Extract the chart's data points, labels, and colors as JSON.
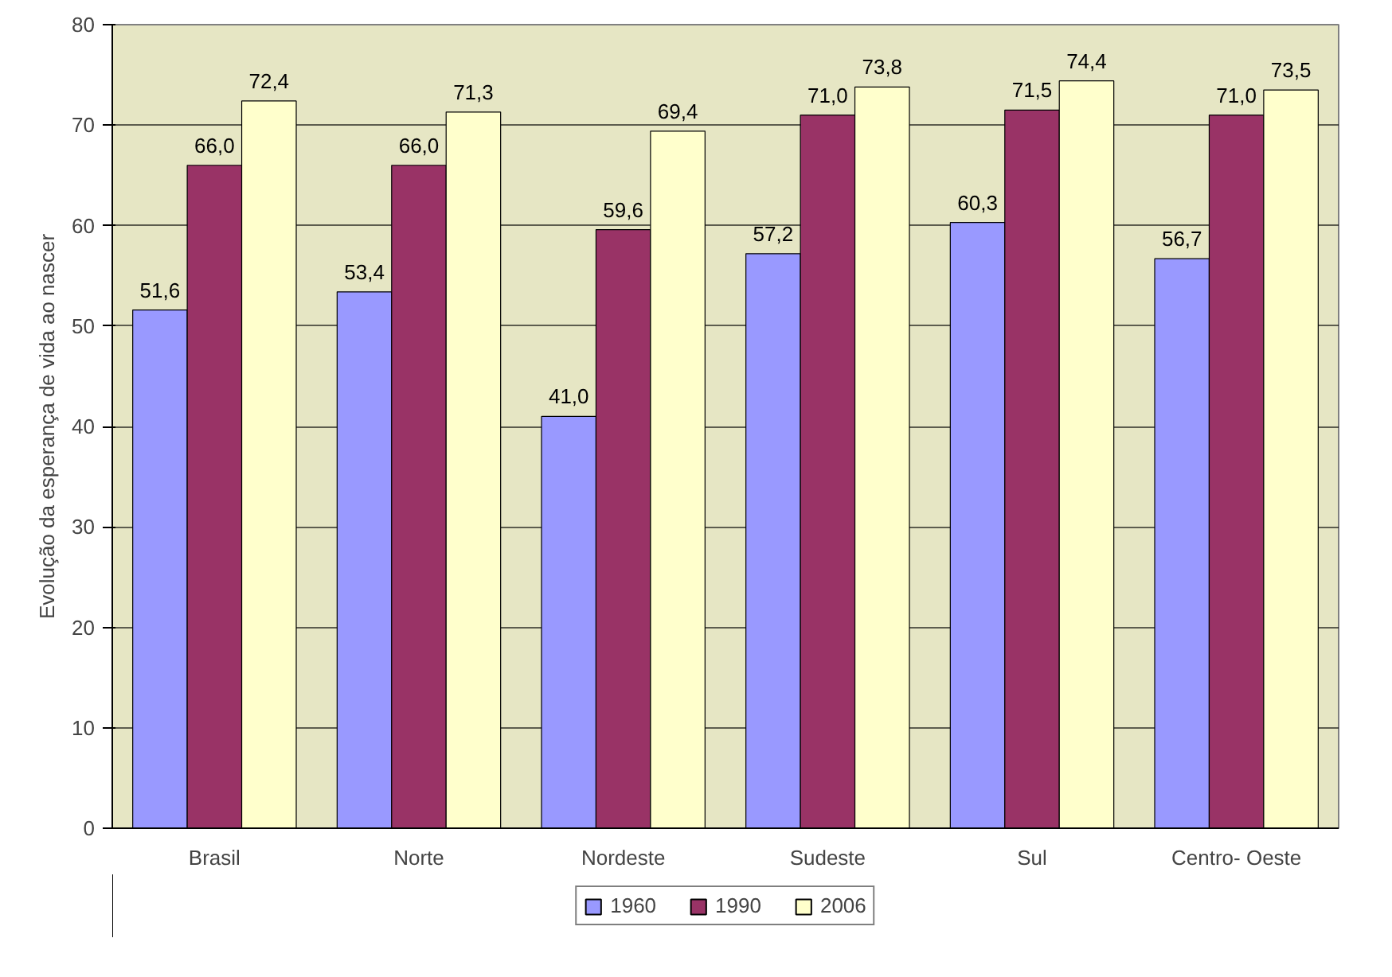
{
  "chart_data": {
    "type": "bar",
    "ylabel": "Evolução da esperança de vida ao nascer",
    "categories": [
      "Brasil",
      "Norte",
      "Nordeste",
      "Sudeste",
      "Sul",
      "Centro- Oeste"
    ],
    "series": [
      {
        "name": "1960",
        "color": "#9999ff",
        "values": [
          51.6,
          53.4,
          41.0,
          57.2,
          60.3,
          56.7
        ],
        "value_labels": [
          "51,6",
          "53,4",
          "41,0",
          "57,2",
          "60,3",
          "56,7"
        ]
      },
      {
        "name": "1990",
        "color": "#993366",
        "values": [
          66.0,
          66.0,
          59.6,
          71.0,
          71.5,
          71.0
        ],
        "value_labels": [
          "66,0",
          "66,0",
          "59,6",
          "71,0",
          "71,5",
          "71,0"
        ]
      },
      {
        "name": "2006",
        "color": "#ffffcc",
        "values": [
          72.4,
          71.3,
          69.4,
          73.8,
          74.4,
          73.5
        ],
        "value_labels": [
          "72,4",
          "71,3",
          "69,4",
          "73,8",
          "74,4",
          "73,5"
        ]
      }
    ],
    "ylim": [
      0,
      80
    ],
    "yticks": [
      0,
      10,
      20,
      30,
      40,
      50,
      60,
      70,
      80
    ],
    "grid": "y",
    "legend": "bottom"
  }
}
